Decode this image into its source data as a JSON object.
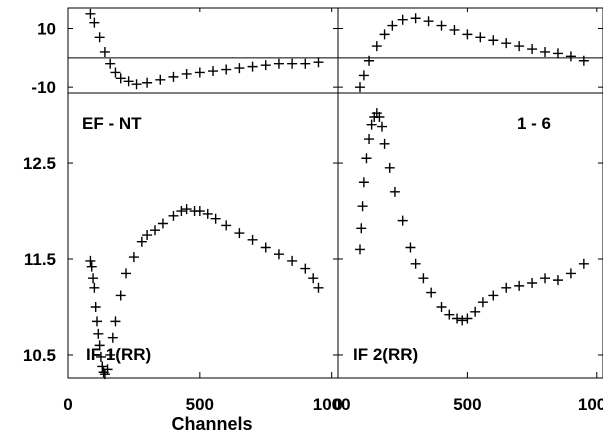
{
  "chart_data": {
    "type": "scatter",
    "marker": "plus",
    "color": "#000000",
    "x_axis": {
      "label": "Channels",
      "range": [
        0,
        1024
      ],
      "ticks": [
        0,
        500,
        1000
      ],
      "tick_labels": [
        "0",
        "500",
        "1000"
      ]
    },
    "residual_y_axis": {
      "range": [
        -12,
        17
      ],
      "ticks": [
        10,
        -10
      ],
      "tick_labels": [
        "10",
        "-10"
      ]
    },
    "main_y_axis": {
      "range": [
        10.26,
        13.23
      ],
      "ticks": [
        12.5,
        11.5,
        10.5
      ],
      "tick_labels": [
        "12.5",
        "11.5",
        "10.5"
      ]
    },
    "annotations": {
      "baseline": "EF - NT",
      "time_range": "1 - 6"
    },
    "panels": [
      {
        "label": "IF 1(RR)",
        "residual_points": [
          [
            85,
            15
          ],
          [
            100,
            12
          ],
          [
            120,
            7
          ],
          [
            140,
            2
          ],
          [
            160,
            -2
          ],
          [
            180,
            -5
          ],
          [
            200,
            -7
          ],
          [
            230,
            -8
          ],
          [
            260,
            -9
          ],
          [
            300,
            -8.5
          ],
          [
            350,
            -7.5
          ],
          [
            400,
            -6.5
          ],
          [
            450,
            -5.5
          ],
          [
            500,
            -5
          ],
          [
            550,
            -4.5
          ],
          [
            600,
            -4
          ],
          [
            650,
            -3.5
          ],
          [
            700,
            -3
          ],
          [
            750,
            -2.5
          ],
          [
            800,
            -2
          ],
          [
            850,
            -2
          ],
          [
            900,
            -2
          ],
          [
            950,
            -1.5
          ]
        ],
        "main_points": [
          [
            85,
            11.48
          ],
          [
            90,
            11.42
          ],
          [
            95,
            11.3
          ],
          [
            100,
            11.2
          ],
          [
            105,
            11.0
          ],
          [
            110,
            10.85
          ],
          [
            115,
            10.72
          ],
          [
            120,
            10.6
          ],
          [
            125,
            10.48
          ],
          [
            130,
            10.38
          ],
          [
            135,
            10.32
          ],
          [
            140,
            10.3
          ],
          [
            150,
            10.35
          ],
          [
            160,
            10.5
          ],
          [
            170,
            10.68
          ],
          [
            180,
            10.85
          ],
          [
            200,
            11.12
          ],
          [
            220,
            11.35
          ],
          [
            250,
            11.52
          ],
          [
            280,
            11.68
          ],
          [
            300,
            11.75
          ],
          [
            330,
            11.8
          ],
          [
            360,
            11.87
          ],
          [
            400,
            11.95
          ],
          [
            430,
            12.0
          ],
          [
            450,
            12.02
          ],
          [
            480,
            12.0
          ],
          [
            500,
            12.0
          ],
          [
            530,
            11.97
          ],
          [
            560,
            11.92
          ],
          [
            600,
            11.85
          ],
          [
            650,
            11.77
          ],
          [
            700,
            11.7
          ],
          [
            750,
            11.62
          ],
          [
            800,
            11.55
          ],
          [
            850,
            11.48
          ],
          [
            900,
            11.4
          ],
          [
            930,
            11.3
          ],
          [
            950,
            11.2
          ]
        ]
      },
      {
        "label": "IF 2(RR)",
        "residual_points": [
          [
            85,
            -10
          ],
          [
            100,
            -6
          ],
          [
            120,
            -1
          ],
          [
            150,
            4
          ],
          [
            180,
            8
          ],
          [
            210,
            11
          ],
          [
            250,
            13
          ],
          [
            300,
            13.5
          ],
          [
            350,
            12.5
          ],
          [
            400,
            11
          ],
          [
            450,
            9.5
          ],
          [
            500,
            8
          ],
          [
            550,
            7
          ],
          [
            600,
            6
          ],
          [
            650,
            5
          ],
          [
            700,
            4
          ],
          [
            750,
            3
          ],
          [
            800,
            2
          ],
          [
            850,
            1.5
          ],
          [
            900,
            0.5
          ],
          [
            950,
            -1
          ]
        ],
        "main_points": [
          [
            85,
            11.6
          ],
          [
            90,
            11.82
          ],
          [
            95,
            12.05
          ],
          [
            100,
            12.3
          ],
          [
            110,
            12.55
          ],
          [
            120,
            12.75
          ],
          [
            130,
            12.9
          ],
          [
            140,
            12.98
          ],
          [
            150,
            13.02
          ],
          [
            160,
            12.98
          ],
          [
            170,
            12.88
          ],
          [
            180,
            12.7
          ],
          [
            200,
            12.45
          ],
          [
            220,
            12.2
          ],
          [
            250,
            11.9
          ],
          [
            280,
            11.62
          ],
          [
            300,
            11.45
          ],
          [
            330,
            11.3
          ],
          [
            360,
            11.15
          ],
          [
            400,
            11.0
          ],
          [
            430,
            10.92
          ],
          [
            460,
            10.88
          ],
          [
            480,
            10.86
          ],
          [
            500,
            10.88
          ],
          [
            530,
            10.95
          ],
          [
            560,
            11.05
          ],
          [
            600,
            11.12
          ],
          [
            650,
            11.2
          ],
          [
            700,
            11.22
          ],
          [
            750,
            11.25
          ],
          [
            800,
            11.3
          ],
          [
            850,
            11.28
          ],
          [
            900,
            11.35
          ],
          [
            950,
            11.45
          ]
        ]
      }
    ]
  }
}
